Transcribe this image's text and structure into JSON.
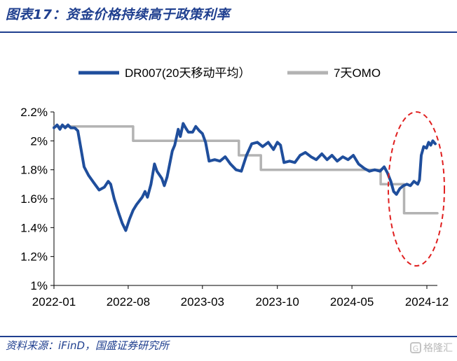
{
  "title": "图表17：资金价格持续高于政策利率",
  "source": "资料来源：iFinD，国盛证券研究所",
  "watermark": "格隆汇",
  "chart_data": {
    "type": "line",
    "title": "图表17：资金价格持续高于政策利率",
    "xlabel": "",
    "ylabel": "",
    "x_range": [
      "2022-01-01",
      "2024-12-31"
    ],
    "x_ticks": [
      {
        "date": "2022-01-01",
        "label": "2022-01"
      },
      {
        "date": "2022-08-01",
        "label": "2022-08"
      },
      {
        "date": "2023-03-01",
        "label": "2023-03"
      },
      {
        "date": "2023-10-01",
        "label": "2023-10"
      },
      {
        "date": "2024-05-01",
        "label": "2024-05"
      },
      {
        "date": "2024-12-01",
        "label": "2024-12"
      }
    ],
    "ylim": [
      1.0,
      2.2
    ],
    "y_ticks": [
      {
        "value": 2.2,
        "label": "2.2%"
      },
      {
        "value": 2.0,
        "label": "2%"
      },
      {
        "value": 1.8,
        "label": "1.8%"
      },
      {
        "value": 1.6,
        "label": "1.6%"
      },
      {
        "value": 1.4,
        "label": "1.4%"
      },
      {
        "value": 1.2,
        "label": "1.2%"
      },
      {
        "value": 1.0,
        "label": "1%"
      }
    ],
    "grid": false,
    "legend_position": "top",
    "annotation": "red dashed ellipse highlighting late 2024",
    "series": [
      {
        "name": "DR007(20天移动平均）",
        "color": "#1f4e9c",
        "points": [
          [
            "2022-01-01",
            2.09
          ],
          [
            "2022-01-10",
            2.11
          ],
          [
            "2022-01-18",
            2.08
          ],
          [
            "2022-01-25",
            2.11
          ],
          [
            "2022-02-02",
            2.09
          ],
          [
            "2022-02-10",
            2.11
          ],
          [
            "2022-02-18",
            2.09
          ],
          [
            "2022-03-01",
            2.09
          ],
          [
            "2022-03-10",
            2.07
          ],
          [
            "2022-03-18",
            1.96
          ],
          [
            "2022-03-28",
            1.82
          ],
          [
            "2022-04-10",
            1.76
          ],
          [
            "2022-04-25",
            1.71
          ],
          [
            "2022-05-10",
            1.66
          ],
          [
            "2022-05-25",
            1.68
          ],
          [
            "2022-06-05",
            1.72
          ],
          [
            "2022-06-12",
            1.7
          ],
          [
            "2022-06-22",
            1.6
          ],
          [
            "2022-07-05",
            1.5
          ],
          [
            "2022-07-15",
            1.43
          ],
          [
            "2022-07-25",
            1.38
          ],
          [
            "2022-08-05",
            1.46
          ],
          [
            "2022-08-15",
            1.52
          ],
          [
            "2022-08-25",
            1.56
          ],
          [
            "2022-09-10",
            1.61
          ],
          [
            "2022-09-18",
            1.65
          ],
          [
            "2022-09-25",
            1.61
          ],
          [
            "2022-10-05",
            1.7
          ],
          [
            "2022-10-15",
            1.84
          ],
          [
            "2022-10-22",
            1.79
          ],
          [
            "2022-11-05",
            1.74
          ],
          [
            "2022-11-12",
            1.69
          ],
          [
            "2022-11-20",
            1.75
          ],
          [
            "2022-12-05",
            1.93
          ],
          [
            "2022-12-12",
            1.97
          ],
          [
            "2022-12-22",
            2.08
          ],
          [
            "2022-12-28",
            2.03
          ],
          [
            "2023-01-05",
            2.12
          ],
          [
            "2023-01-12",
            2.09
          ],
          [
            "2023-01-20",
            2.06
          ],
          [
            "2023-02-01",
            2.06
          ],
          [
            "2023-02-10",
            2.1
          ],
          [
            "2023-02-20",
            2.07
          ],
          [
            "2023-03-01",
            2.05
          ],
          [
            "2023-03-10",
            1.99
          ],
          [
            "2023-03-20",
            1.86
          ],
          [
            "2023-04-05",
            1.87
          ],
          [
            "2023-04-20",
            1.86
          ],
          [
            "2023-05-05",
            1.89
          ],
          [
            "2023-05-20",
            1.84
          ],
          [
            "2023-06-05",
            1.8
          ],
          [
            "2023-06-20",
            1.79
          ],
          [
            "2023-07-05",
            1.9
          ],
          [
            "2023-07-20",
            1.98
          ],
          [
            "2023-08-05",
            1.99
          ],
          [
            "2023-08-20",
            1.96
          ],
          [
            "2023-09-05",
            1.99
          ],
          [
            "2023-09-20",
            1.94
          ],
          [
            "2023-10-01",
            1.99
          ],
          [
            "2023-10-10",
            1.97
          ],
          [
            "2023-10-20",
            1.85
          ],
          [
            "2023-11-05",
            1.86
          ],
          [
            "2023-11-20",
            1.85
          ],
          [
            "2023-12-05",
            1.9
          ],
          [
            "2023-12-20",
            1.92
          ],
          [
            "2024-01-05",
            1.89
          ],
          [
            "2024-01-20",
            1.87
          ],
          [
            "2024-02-05",
            1.91
          ],
          [
            "2024-02-20",
            1.87
          ],
          [
            "2024-03-05",
            1.9
          ],
          [
            "2024-03-20",
            1.86
          ],
          [
            "2024-04-05",
            1.89
          ],
          [
            "2024-04-20",
            1.87
          ],
          [
            "2024-05-05",
            1.9
          ],
          [
            "2024-05-20",
            1.84
          ],
          [
            "2024-06-05",
            1.81
          ],
          [
            "2024-06-20",
            1.79
          ],
          [
            "2024-07-05",
            1.8
          ],
          [
            "2024-07-20",
            1.79
          ],
          [
            "2024-08-01",
            1.82
          ],
          [
            "2024-08-10",
            1.78
          ],
          [
            "2024-08-20",
            1.72
          ],
          [
            "2024-08-28",
            1.65
          ],
          [
            "2024-09-05",
            1.63
          ],
          [
            "2024-09-15",
            1.67
          ],
          [
            "2024-09-25",
            1.69
          ],
          [
            "2024-10-05",
            1.7
          ],
          [
            "2024-10-15",
            1.69
          ],
          [
            "2024-10-25",
            1.72
          ],
          [
            "2024-11-05",
            1.7
          ],
          [
            "2024-11-10",
            1.73
          ],
          [
            "2024-11-15",
            1.9
          ],
          [
            "2024-11-22",
            1.96
          ],
          [
            "2024-11-30",
            1.95
          ],
          [
            "2024-12-06",
            1.99
          ],
          [
            "2024-12-12",
            1.97
          ],
          [
            "2024-12-18",
            2.0
          ],
          [
            "2024-12-25",
            1.98
          ]
        ]
      },
      {
        "name": "7天OMO",
        "color": "#b3b3b3",
        "points": [
          [
            "2022-01-01",
            2.1
          ],
          [
            "2022-01-20",
            2.1
          ],
          [
            "2022-01-20",
            2.1
          ],
          [
            "2022-08-15",
            2.1
          ],
          [
            "2022-08-15",
            2.0
          ],
          [
            "2023-06-13",
            2.0
          ],
          [
            "2023-06-13",
            1.9
          ],
          [
            "2023-08-15",
            1.9
          ],
          [
            "2023-08-15",
            1.8
          ],
          [
            "2024-07-22",
            1.8
          ],
          [
            "2024-07-22",
            1.7
          ],
          [
            "2024-09-27",
            1.7
          ],
          [
            "2024-09-27",
            1.5
          ],
          [
            "2024-12-31",
            1.5
          ]
        ]
      }
    ]
  }
}
